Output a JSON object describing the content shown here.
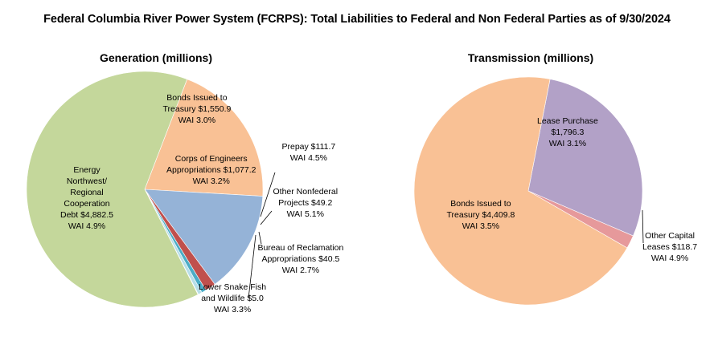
{
  "title": "Federal Columbia River Power System (FCRPS): Total Liabilities to Federal and Non Federal Parties as of 9/30/2024",
  "chart_data": [
    {
      "type": "pie",
      "title": "Generation (millions)",
      "slices": [
        {
          "lines": [
            "Bonds Issued to",
            "Treasury $1,550.9",
            "WAI 3.0%"
          ],
          "value": 1550.9,
          "color": "#f9c195"
        },
        {
          "lines": [
            "Corps of Engineers",
            "Appropriations $1,077.2",
            "WAI 3.2%"
          ],
          "value": 1077.2,
          "color": "#95b3d7"
        },
        {
          "lines": [
            "Prepay $111.7",
            "WAI 4.5%"
          ],
          "value": 111.7,
          "color": "#c0504d"
        },
        {
          "lines": [
            "Other Nonfederal",
            "Projects $49.2",
            "WAI 5.1%"
          ],
          "value": 49.2,
          "color": "#4bacc6"
        },
        {
          "lines": [
            "Bureau of Reclamation",
            "Appropriations $40.5",
            "WAI 2.7%"
          ],
          "value": 40.5,
          "color": "#b7dee8"
        },
        {
          "lines": [
            "Lower Snake Fish",
            "and Wildlife $5.0",
            "WAI 3.3%"
          ],
          "value": 5.0,
          "color": "#1f497d"
        },
        {
          "lines": [
            "Energy",
            "Northwest/",
            "Regional",
            "Cooperation",
            "Debt $4,882.5",
            "WAI 4.9%"
          ],
          "value": 4882.5,
          "color": "#c4d79b"
        }
      ]
    },
    {
      "type": "pie",
      "title": "Transmission (millions)",
      "slices": [
        {
          "lines": [
            "Lease Purchase",
            "$1,796.3",
            "WAI 3.1%"
          ],
          "value": 1796.3,
          "color": "#b2a1c7"
        },
        {
          "lines": [
            "Other Capital",
            "Leases $118.7",
            "WAI 4.9%"
          ],
          "value": 118.7,
          "color": "#e6999b"
        },
        {
          "lines": [
            "Bonds Issued to",
            "Treasury $4,409.8",
            "WAI 3.5%"
          ],
          "value": 4409.8,
          "color": "#f9c195"
        }
      ]
    }
  ]
}
